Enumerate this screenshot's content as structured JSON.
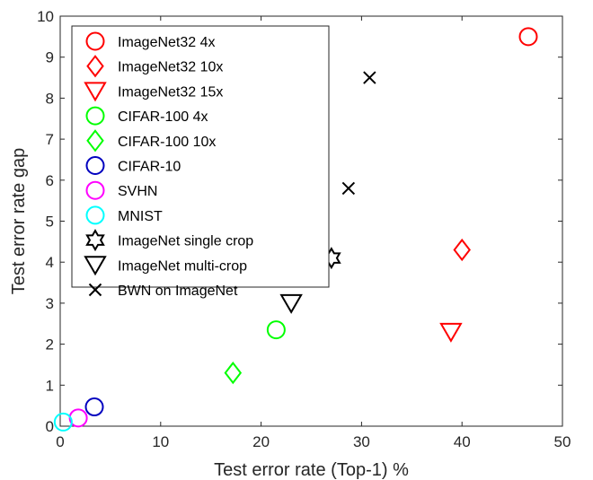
{
  "chart_data": {
    "type": "scatter",
    "title": "",
    "xlabel": "Test error rate (Top-1) %",
    "ylabel": "Test error rate gap",
    "xlim": [
      0,
      50
    ],
    "ylim": [
      0,
      10
    ],
    "xticks": [
      "0",
      "10",
      "20",
      "30",
      "40",
      "50"
    ],
    "yticks": [
      "0",
      "1",
      "2",
      "3",
      "4",
      "5",
      "6",
      "7",
      "8",
      "9",
      "10"
    ],
    "grid": false,
    "legend_position": "top-left",
    "series": [
      {
        "name": "ImageNet32 4x",
        "marker": "circle",
        "color": "#ff0000",
        "points": [
          {
            "x": 46.6,
            "y": 9.5
          }
        ]
      },
      {
        "name": "ImageNet32 10x",
        "marker": "diamond",
        "color": "#ff0000",
        "points": [
          {
            "x": 40.0,
            "y": 4.3
          }
        ]
      },
      {
        "name": "ImageNet32 15x",
        "marker": "triangle-down",
        "color": "#ff0000",
        "points": [
          {
            "x": 38.9,
            "y": 2.3
          }
        ]
      },
      {
        "name": "CIFAR-100 4x",
        "marker": "circle",
        "color": "#00ff00",
        "points": [
          {
            "x": 21.5,
            "y": 2.35
          }
        ]
      },
      {
        "name": "CIFAR-100 10x",
        "marker": "diamond",
        "color": "#00ff00",
        "points": [
          {
            "x": 17.2,
            "y": 1.3
          }
        ]
      },
      {
        "name": "CIFAR-10",
        "marker": "circle",
        "color": "#0000bf",
        "points": [
          {
            "x": 3.4,
            "y": 0.47
          }
        ]
      },
      {
        "name": "SVHN",
        "marker": "circle",
        "color": "#ff00ff",
        "points": [
          {
            "x": 1.8,
            "y": 0.2
          }
        ]
      },
      {
        "name": "MNIST",
        "marker": "circle",
        "color": "#00ffff",
        "points": [
          {
            "x": 0.3,
            "y": 0.1
          }
        ]
      },
      {
        "name": "ImageNet single crop",
        "marker": "hexagram",
        "color": "#000000",
        "points": [
          {
            "x": 27.0,
            "y": 4.1
          }
        ]
      },
      {
        "name": "ImageNet multi-crop",
        "marker": "triangle-down",
        "color": "#000000",
        "points": [
          {
            "x": 23.0,
            "y": 3.0
          }
        ]
      },
      {
        "name": "BWN on ImageNet",
        "marker": "x",
        "color": "#000000",
        "points": [
          {
            "x": 30.8,
            "y": 8.5
          },
          {
            "x": 28.7,
            "y": 5.8
          }
        ]
      }
    ]
  }
}
